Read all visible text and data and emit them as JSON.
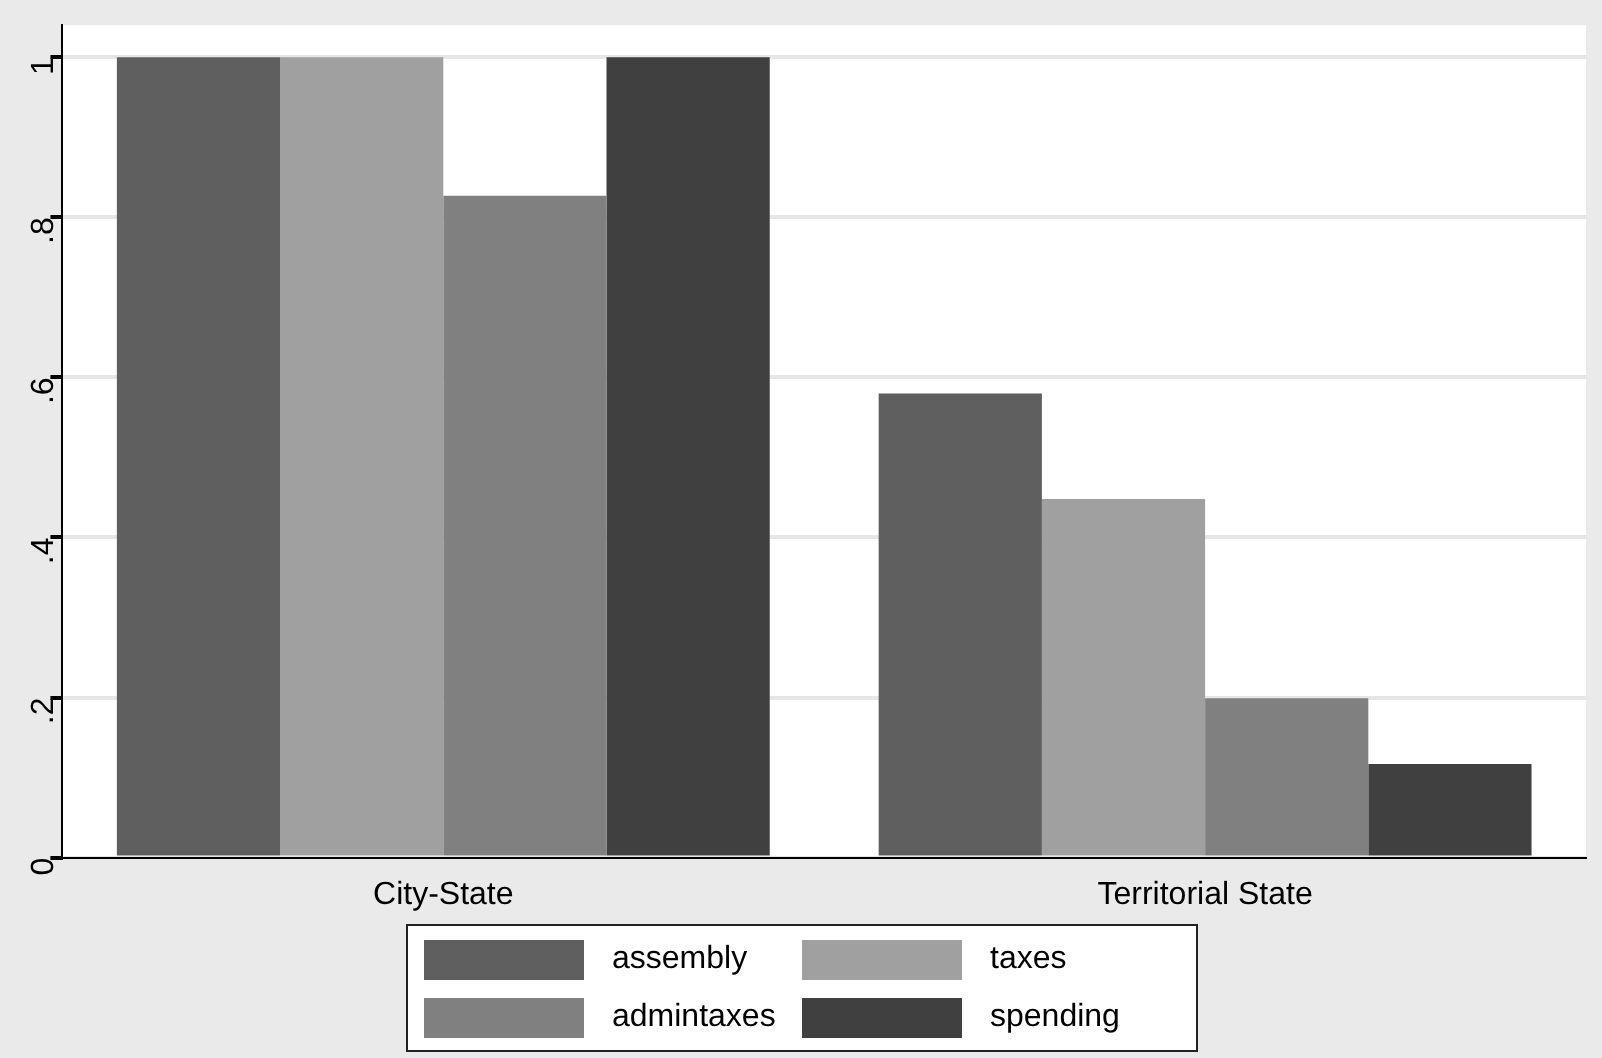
{
  "chart_data": {
    "type": "bar",
    "categories": [
      "City-State",
      "Territorial State"
    ],
    "series": [
      {
        "name": "assembly",
        "color": "#5f5f5f",
        "values": [
          1,
          0.58
        ]
      },
      {
        "name": "taxes",
        "color": "#a0a0a0",
        "values": [
          1,
          0.448
        ]
      },
      {
        "name": "admintaxes",
        "color": "#808080",
        "values": [
          0.827,
          0.199
        ]
      },
      {
        "name": "spending",
        "color": "#404040",
        "values": [
          1,
          0.117
        ]
      }
    ],
    "ylim": [
      0,
      1.04
    ],
    "yticks": [
      {
        "value": 0,
        "label": "0"
      },
      {
        "value": 0.2,
        "label": ".2"
      },
      {
        "value": 0.4,
        "label": ".4"
      },
      {
        "value": 0.6,
        "label": ".6"
      },
      {
        "value": 0.8,
        "label": ".8"
      },
      {
        "value": 1,
        "label": "1"
      }
    ],
    "grid": "y",
    "legend": "bottom"
  }
}
